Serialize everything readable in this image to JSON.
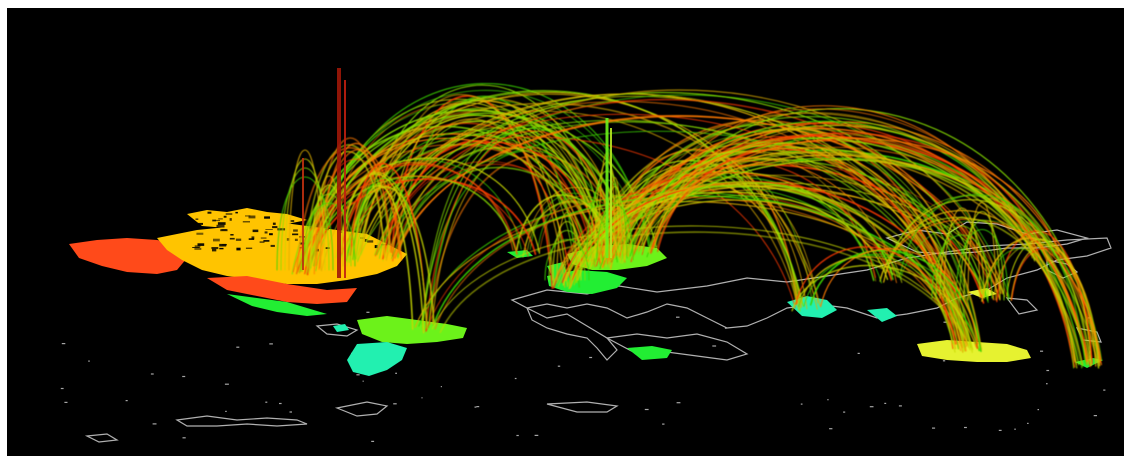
{
  "scene": {
    "description_visible_text": "",
    "background_color": "#000000",
    "frame_color": "#ffffff",
    "arc_palette": [
      "#ff3a00",
      "#ff7a00",
      "#e0b000",
      "#c8d800",
      "#88e000",
      "#3bd400"
    ],
    "region_palette": {
      "hot": "#ff4a1a",
      "warm": "#ffc400",
      "lime": "#6cf21a",
      "green": "#22ee33",
      "teal": "#22f0b0",
      "yellow": "#e6f230",
      "outline": "#cfcfcf"
    }
  }
}
